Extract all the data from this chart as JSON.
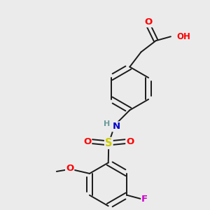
{
  "bg_color": "#ebebeb",
  "bond_color": "#1a1a1a",
  "bond_width": 1.4,
  "atom_colors": {
    "O": "#ff0000",
    "N": "#0000cc",
    "S": "#cccc00",
    "F": "#cc00cc",
    "H": "#6a9a9a",
    "C": "#1a1a1a"
  },
  "font_size": 8.5,
  "fig_size": [
    3.0,
    3.0
  ],
  "dpi": 100,
  "xlim": [
    0,
    10
  ],
  "ylim": [
    0,
    10
  ]
}
